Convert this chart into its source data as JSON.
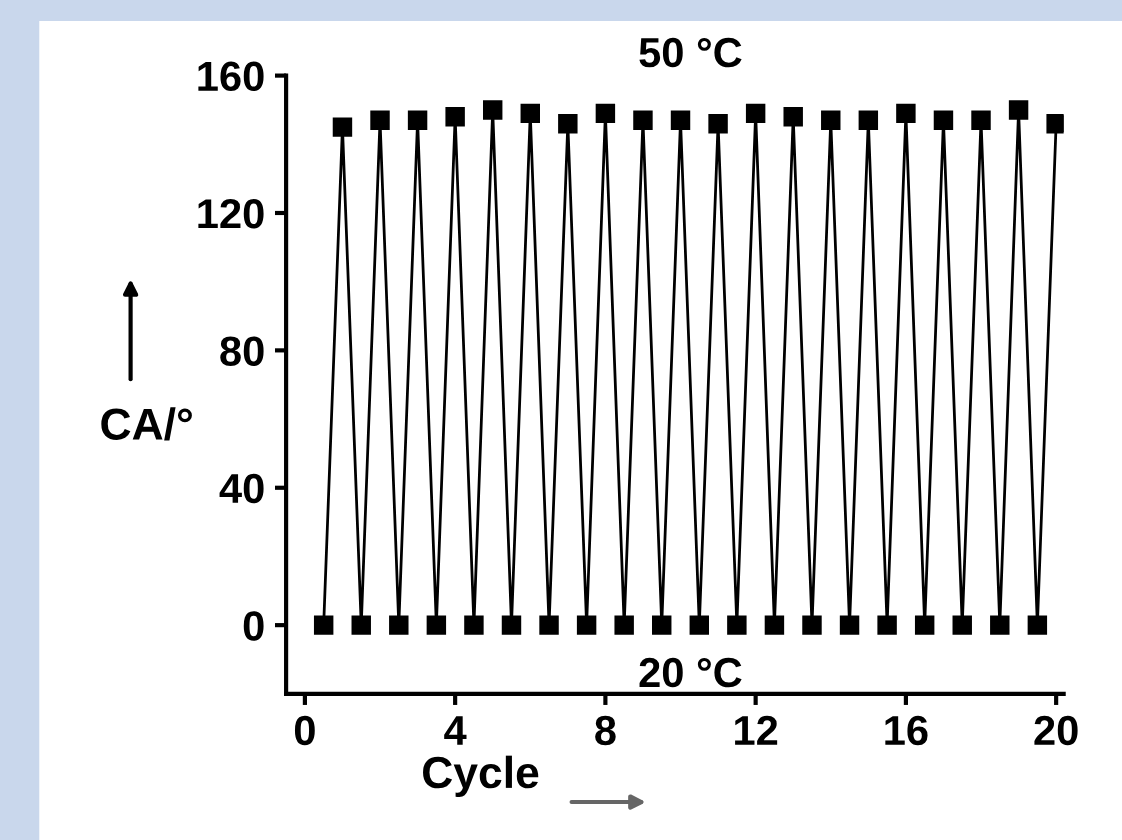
{
  "chart_data": {
    "type": "line",
    "xlabel": "Cycle",
    "ylabel": "CA/°",
    "annotations": [
      "50 °C",
      "20 °C"
    ],
    "series": [
      {
        "color": "#000000",
        "x": [
          0.5,
          1,
          1.5,
          2,
          2.5,
          3,
          3.5,
          4,
          4.5,
          5,
          5.5,
          6,
          6.5,
          7,
          7.5,
          8,
          8.5,
          9,
          9.5,
          10,
          10.5,
          11,
          11.5,
          12,
          12.5,
          13,
          13.5,
          14,
          14.5,
          15,
          15.5,
          16,
          16.5,
          17,
          17.5,
          18,
          18.5,
          19,
          19.5,
          20
        ],
        "values": [
          0,
          145,
          0,
          147,
          0,
          147,
          0,
          148,
          0,
          150,
          0,
          149,
          0,
          146,
          0,
          149,
          0,
          147,
          0,
          147,
          0,
          146,
          0,
          149,
          0,
          148,
          0,
          147,
          0,
          147,
          0,
          149,
          0,
          147,
          0,
          147,
          0,
          150,
          0,
          146
        ]
      }
    ],
    "xlim": [
      -0.5,
      20.2
    ],
    "ylim": [
      -20,
      160
    ],
    "xticks": [
      0,
      4,
      8,
      12,
      16,
      20
    ],
    "yticks": [
      0,
      40,
      80,
      120,
      160
    ],
    "marker": "square",
    "line_style": "solid",
    "grid": false,
    "legend": false
  }
}
